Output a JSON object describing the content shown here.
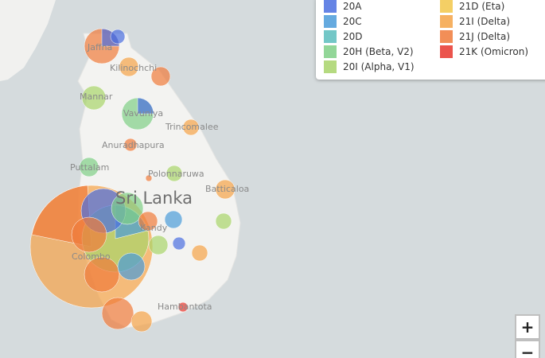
{
  "legend": [
    {
      "label": "20A",
      "color": "#4a6ee0"
    },
    {
      "label": "20C",
      "color": "#4a9bd9"
    },
    {
      "label": "20D",
      "color": "#5bbdbd"
    },
    {
      "label": "20H (Beta, V2)",
      "color": "#7fcf86"
    },
    {
      "label": "20I (Alpha, V1)",
      "color": "#a8d46a"
    },
    {
      "label": "21D (Eta)",
      "color": "#f2c74a"
    },
    {
      "label": "21I (Delta)",
      "color": "#f5a347"
    },
    {
      "label": "21J (Delta)",
      "color": "#f07a3a"
    },
    {
      "label": "21K (Omicron)",
      "color": "#e8362d"
    }
  ],
  "places": [
    "Jaffna",
    "Kilinochchi",
    "Mannar",
    "Vavuniya",
    "Trincomalee",
    "Anuradhapura",
    "Puttalam",
    "Polonnaruwa",
    "Batticaloa",
    "Kandy",
    "Colombo",
    "Hambantota"
  ],
  "country": "Sri Lanka",
  "zoom": {
    "in": "+",
    "out": "−"
  }
}
